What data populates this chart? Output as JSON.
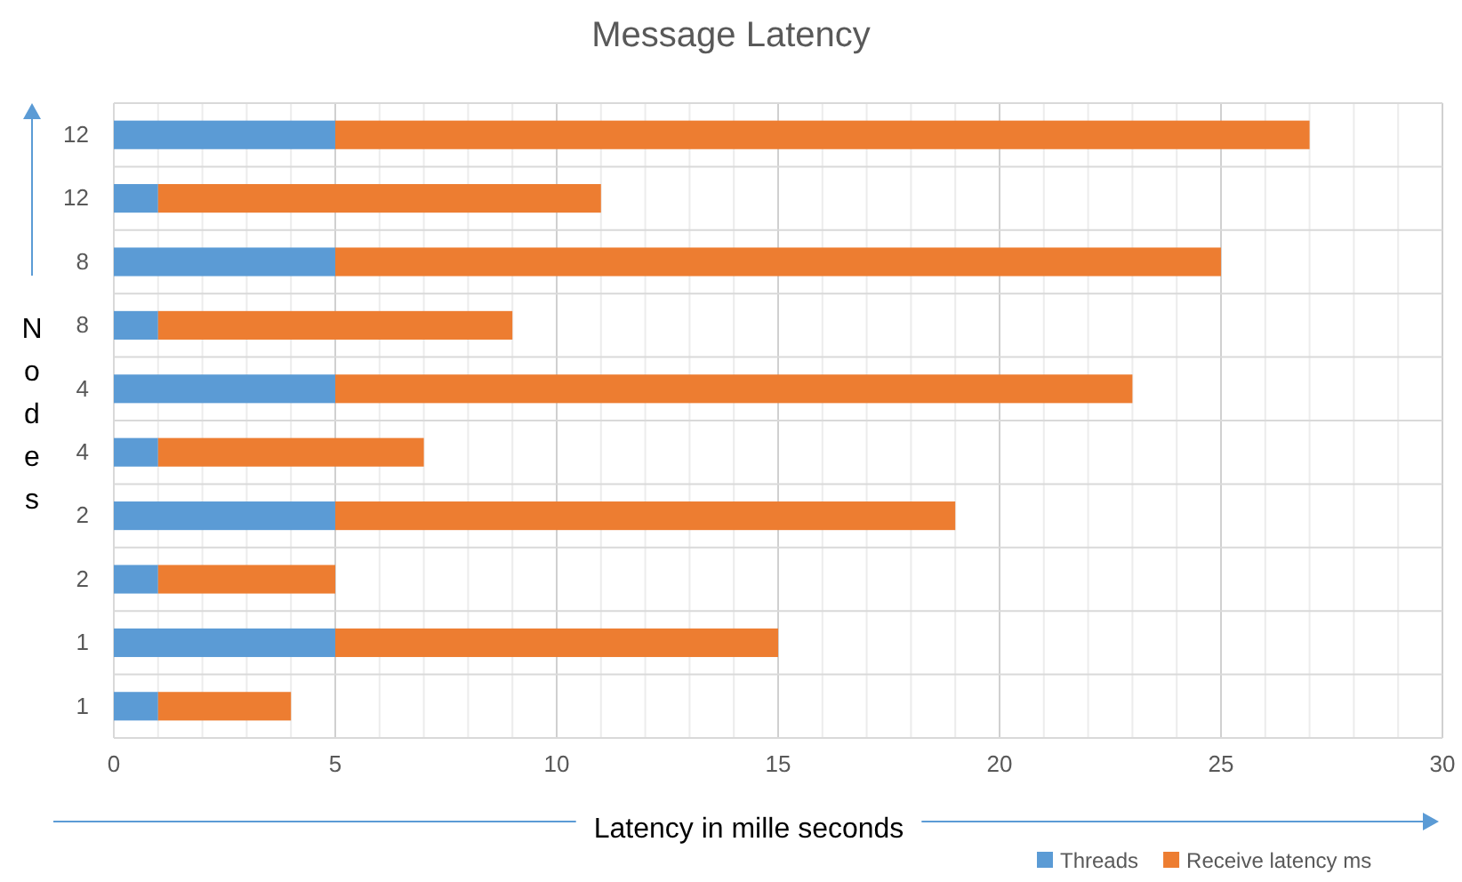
{
  "chart_data": {
    "type": "bar",
    "title": "Message Latency",
    "xlabel": "Latency in mille seconds",
    "ylabel": "Nodes",
    "orientation": "horizontal",
    "stacked": true,
    "categories": [
      "12",
      "12",
      "8",
      "8",
      "4",
      "4",
      "2",
      "2",
      "1",
      "1"
    ],
    "series": [
      {
        "name": "Threads",
        "color": "#5b9bd5",
        "values": [
          5,
          1,
          5,
          1,
          5,
          1,
          5,
          1,
          5,
          1
        ]
      },
      {
        "name": "Receive latency ms",
        "color": "#ed7d31",
        "values": [
          22,
          10,
          20,
          8,
          18,
          6,
          14,
          4,
          10,
          3
        ]
      }
    ],
    "xlim": [
      0,
      30
    ],
    "xticks": [
      0,
      {
        "value": 1,
        "label": null
      },
      {
        "value": 2,
        "label": null
      },
      {
        "value": 3,
        "label": null
      },
      {
        "value": 4,
        "label": null
      },
      5,
      {
        "value": 6,
        "label": null
      },
      {
        "value": 7,
        "label": null
      },
      {
        "value": 8,
        "label": null
      },
      {
        "value": 9,
        "label": null
      },
      10,
      {
        "value": 11,
        "label": null
      },
      {
        "value": 12,
        "label": null
      },
      {
        "value": 13,
        "label": null
      },
      {
        "value": 14,
        "label": null
      },
      15,
      {
        "value": 16,
        "label": null
      },
      {
        "value": 17,
        "label": null
      },
      {
        "value": 18,
        "label": null
      },
      {
        "value": 19,
        "label": null
      },
      20,
      {
        "value": 21,
        "label": null
      },
      {
        "value": 22,
        "label": null
      },
      {
        "value": 23,
        "label": null
      },
      {
        "value": 24,
        "label": null
      },
      25,
      {
        "value": 26,
        "label": null
      },
      {
        "value": 27,
        "label": null
      },
      {
        "value": 28,
        "label": null
      },
      {
        "value": 29,
        "label": null
      },
      30
    ],
    "grid": "x",
    "legend": "bottom right"
  }
}
